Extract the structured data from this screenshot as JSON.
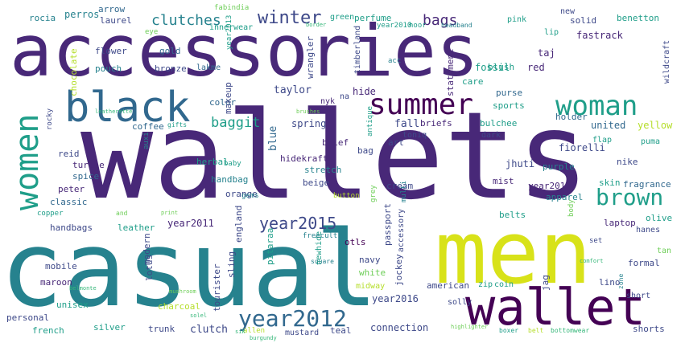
{
  "words": {
    "accessories": "accessories",
    "wallets": "wallets",
    "casual": "casual",
    "men": "men",
    "wallet": "wallet",
    "black": "black",
    "summer": "summer",
    "woman": "woman",
    "women": "women",
    "brown": "brown",
    "year2012": "year2012",
    "winter": "winter",
    "year2015": "year2015",
    "clutches": "clutches",
    "bags": "bags",
    "baggit": "baggit",
    "perros": "perros",
    "rocia": "rocia",
    "arrow": "arrow",
    "laurel": "laurel",
    "perfume": "perfume",
    "green": "green",
    "taj": "taj",
    "fastrack": "fastrack",
    "solid": "solid",
    "benetton": "benetton",
    "flower": "flower",
    "pouch": "pouch",
    "gold": "gold",
    "bronze": "bronze",
    "lakme": "lakme",
    "fossil": "fossil",
    "red": "red",
    "blush": "blush",
    "care": "care",
    "taylor": "taylor",
    "hide": "hide",
    "nyk": "nyk",
    "na": "na",
    "purse": "purse",
    "sports": "sports",
    "spring": "spring",
    "fall": "fall",
    "briefs": "briefs",
    "bulchee": "bulchee",
    "holder": "holder",
    "united": "united",
    "yellow": "yellow",
    "color": "color",
    "coffee": "coffee",
    "reid": "reid",
    "turtle": "turtle",
    "spice": "spice",
    "herbal": "herbal",
    "blue": "blue",
    "brief": "brief",
    "bag": "bag",
    "art": "art",
    "hidekraft": "hidekraft",
    "fiorelli": "fiorelli",
    "jhuti": "jhuti",
    "nike": "nike",
    "stretch": "stretch",
    "purple": "purple",
    "peter": "peter",
    "classic": "classic",
    "handbag": "handbag",
    "orange": "orange",
    "beige": "beige",
    "cream": "cream",
    "mist": "mist",
    "year2017": "year2017",
    "apparel": "apparel",
    "skin": "skin",
    "fragrance": "fragrance",
    "year2011": "year2011",
    "handbags": "handbags",
    "leather": "leather",
    "england": "england",
    "otls": "otls",
    "belts": "belts",
    "laptop": "laptop",
    "olive": "olive",
    "hanes": "hanes",
    "modern": "modern",
    "passport": "passport",
    "accessory": "accessory",
    "mobile": "mobile",
    "maroon": "maroon",
    "lotus": "lotus",
    "tourister": "tourister",
    "sling": "sling",
    "pitaraa": "pitaraa",
    "navy": "navy",
    "white": "white",
    "formal": "formal",
    "lino": "lino",
    "year2016": "year2016",
    "american": "american",
    "zip": "zip",
    "coin": "coin",
    "jag": "jag",
    "personal": "personal",
    "unisex": "unisex",
    "charcoal": "charcoal",
    "french": "french",
    "silver": "silver",
    "trunk": "trunk",
    "clutch": "clutch",
    "mustard": "mustard",
    "teal": "teal",
    "connection": "connection",
    "solly": "solly",
    "short": "short",
    "shorts": "shorts",
    "midway": "midway",
    "boxer": "boxer",
    "belt": "belt",
    "bottomwear": "bottomwear",
    "year2013": "year2013",
    "year2010": "year2010",
    "wrangler": "wrangler",
    "timberland": "timberland",
    "statement": "statement",
    "chocolate": "chocolate",
    "makeup": "makeup",
    "innerwear": "innerwear",
    "fabindia": "fabindia",
    "eye": "eye",
    "lip": "lip",
    "pink": "pink",
    "new": "new",
    "toniq": "toniq",
    "flap": "flap",
    "puma": "puma",
    "dark": "dark",
    "jockey": "jockey",
    "rocky": "rocky",
    "set": "set",
    "tan": "tan",
    "gems": "gems",
    "multi": "multi",
    "grey": "grey",
    "button": "button",
    "body": "body",
    "square": "square",
    "newhide": "newhide",
    "freecultr": "freecultr",
    "acc": "acc",
    "antique": "antique",
    "wildcraft": "wildcraft",
    "baby": "baby",
    "copper": "copper",
    "gifts": "gifts",
    "auxi": "auxi",
    "print": "print",
    "mushroom": "mushroom",
    "highlighter": "highlighter",
    "allen": "allen",
    "burgundy": "burgundy",
    "sik": "sik",
    "solel": "solel",
    "comfort": "comfort",
    "zone": "zone",
    "and": "and",
    "leatherette": "leatherette",
    "belmonte": "belmonte",
    "hoor": "hoor",
    "headband": "headband",
    "border": "border",
    "brushes": "brushes"
  }
}
